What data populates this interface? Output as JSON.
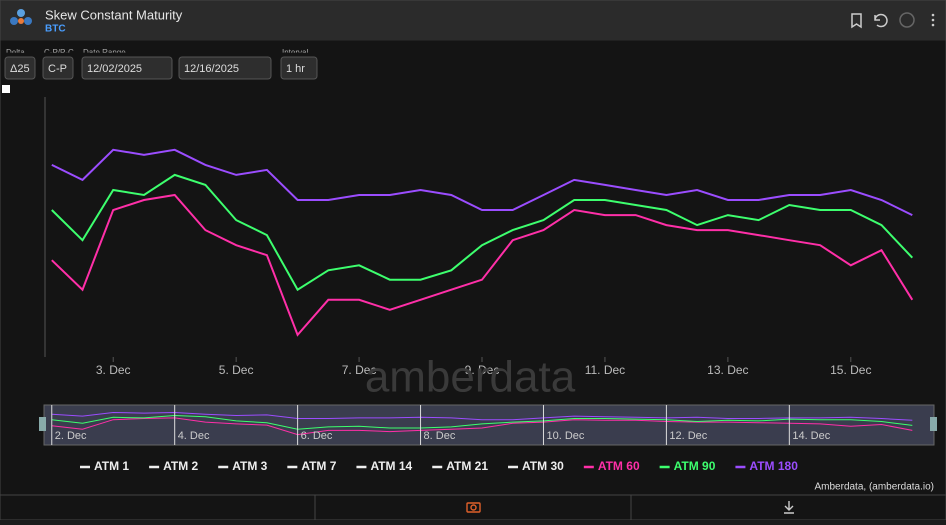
{
  "header": {
    "title": "Skew Constant Maturity",
    "subtitle": "BTC"
  },
  "controls": [
    {
      "label": "Delta",
      "value": "Δ25"
    },
    {
      "label": "C-P/P-C",
      "value": "C-P"
    },
    {
      "label": "Date Range",
      "value": "12/02/2025"
    },
    {
      "label": null,
      "value": "12/16/2025"
    },
    {
      "label": "Interval",
      "value": "1 hr"
    }
  ],
  "chart_data": {
    "type": "line",
    "x": [
      2,
      2.5,
      3,
      3.5,
      4,
      4.5,
      5,
      5.5,
      6,
      6.5,
      7,
      7.5,
      8,
      8.5,
      9,
      9.5,
      10,
      10.5,
      11,
      11.5,
      12,
      12.5,
      13,
      13.5,
      14,
      14.5,
      15,
      15.5,
      16
    ],
    "xlim": [
      1.89,
      16.37
    ],
    "xticks": [
      {
        "value": 3,
        "label": "3. Dec"
      },
      {
        "value": 5,
        "label": "5. Dec"
      },
      {
        "value": 7,
        "label": "7. Dec"
      },
      {
        "value": 9,
        "label": "9. Dec"
      },
      {
        "value": 11,
        "label": "11. Dec"
      },
      {
        "value": 13,
        "label": "13. Dec"
      },
      {
        "value": 15,
        "label": "15. Dec"
      }
    ],
    "navigator_ticks": [
      {
        "value": 2,
        "label": "2. Dec"
      },
      {
        "value": 4,
        "label": "4. Dec"
      },
      {
        "value": 6,
        "label": "6. Dec"
      },
      {
        "value": 8,
        "label": "8. Dec"
      },
      {
        "value": 10,
        "label": "10. Dec"
      },
      {
        "value": 12,
        "label": "12. Dec"
      },
      {
        "value": 14,
        "label": "14. Dec"
      }
    ],
    "ylim": [
      -2,
      2
    ],
    "legend_inactive": [
      "ATM 1",
      "ATM 2",
      "ATM 3",
      "ATM 7",
      "ATM 14",
      "ATM 21",
      "ATM 30"
    ],
    "series": [
      {
        "name": "ATM 60",
        "color": "#ff2fa8",
        "values": [
          -0.49,
          -0.96,
          0.31,
          0.47,
          0.55,
          -0.01,
          -0.25,
          -0.41,
          -1.68,
          -1.12,
          -1.12,
          -1.28,
          -1.12,
          -0.96,
          -0.8,
          -0.17,
          -0.01,
          0.31,
          0.23,
          0.23,
          0.07,
          -0.01,
          -0.01,
          -0.09,
          -0.17,
          -0.25,
          -0.57,
          -0.33,
          -1.12
        ]
      },
      {
        "name": "ATM 90",
        "color": "#3dff6e",
        "values": [
          0.31,
          -0.17,
          0.63,
          0.55,
          0.87,
          0.71,
          0.15,
          -0.09,
          -0.96,
          -0.65,
          -0.57,
          -0.8,
          -0.8,
          -0.65,
          -0.25,
          -0.01,
          0.15,
          0.47,
          0.47,
          0.39,
          0.31,
          0.07,
          0.23,
          0.15,
          0.39,
          0.31,
          0.31,
          0.07,
          -0.45
        ]
      },
      {
        "name": "ATM 180",
        "color": "#9b4dff",
        "values": [
          1.03,
          0.79,
          1.27,
          1.19,
          1.27,
          1.03,
          0.87,
          0.95,
          0.47,
          0.47,
          0.55,
          0.55,
          0.63,
          0.55,
          0.31,
          0.31,
          0.55,
          0.79,
          0.71,
          0.63,
          0.55,
          0.63,
          0.47,
          0.47,
          0.55,
          0.55,
          0.63,
          0.47,
          0.23
        ]
      }
    ]
  },
  "watermark": "amberdata",
  "credit": "Amberdata, (amberdata.io)"
}
